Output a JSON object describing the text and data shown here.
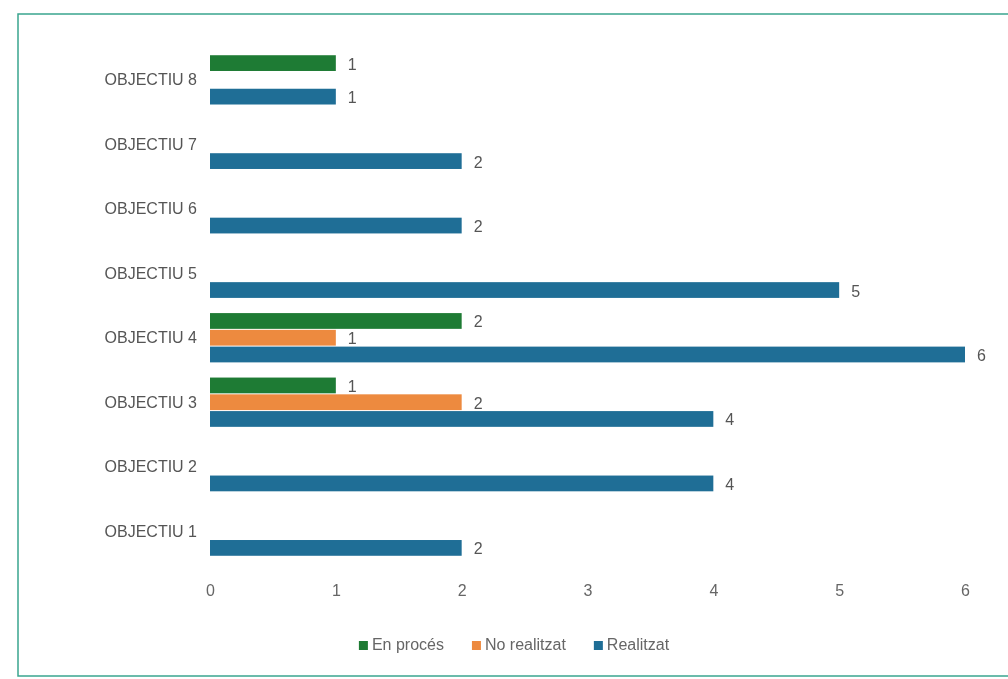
{
  "chart_data": {
    "type": "bar",
    "orientation": "horizontal",
    "categories": [
      "OBJECTIU 8",
      "OBJECTIU 7",
      "OBJECTIU 6",
      "OBJECTIU 5",
      "OBJECTIU 4",
      "OBJECTIU 3",
      "OBJECTIU 2",
      "OBJECTIU 1"
    ],
    "series": [
      {
        "name": "En procés",
        "color": "#1e7b34",
        "values": [
          1,
          null,
          null,
          null,
          2,
          1,
          null,
          null
        ]
      },
      {
        "name": "No realitzat",
        "color": "#ed8a3f",
        "values": [
          null,
          null,
          null,
          null,
          1,
          2,
          null,
          null
        ]
      },
      {
        "name": "Realitzat",
        "color": "#1f6e96",
        "values": [
          1,
          2,
          2,
          5,
          6,
          4,
          4,
          2
        ]
      }
    ],
    "xlim": [
      0,
      6
    ],
    "xticks": [
      0,
      1,
      2,
      3,
      4,
      5,
      6
    ],
    "data_labels": true,
    "legend": "bottom"
  }
}
